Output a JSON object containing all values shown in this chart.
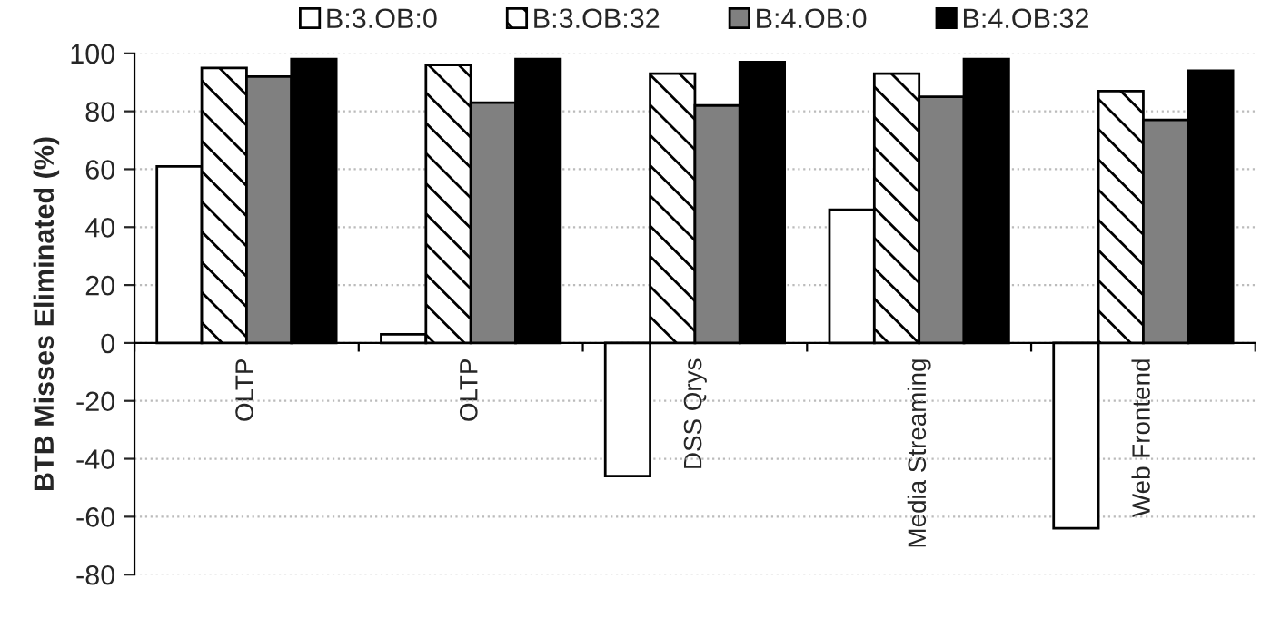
{
  "chart_data": {
    "type": "bar",
    "ylabel": "BTB Misses Eliminated (%)",
    "categories": [
      "OLTP",
      "OLTP",
      "DSS Qrys",
      "Media Streaming",
      "Web Frontend"
    ],
    "series": [
      {
        "name": "B:3.OB:0",
        "color": "#ffffff",
        "values": [
          61,
          3,
          -46,
          46,
          -64
        ]
      },
      {
        "name": "B:3.OB:32",
        "color": "#000000",
        "values": [
          95,
          96,
          93,
          93,
          87
        ]
      },
      {
        "name": "B:4.OB:0",
        "color": "#808080",
        "values": [
          92,
          83,
          82,
          85,
          77
        ]
      },
      {
        "name": "B:4.OB:32",
        "color": "#000000",
        "values": [
          98,
          98,
          97,
          98,
          94
        ]
      }
    ],
    "ylim": [
      -80,
      100
    ],
    "yticks": [
      -80,
      -60,
      -40,
      -20,
      0,
      20,
      40,
      60,
      80,
      100
    ],
    "grid": "y",
    "legend": "top"
  }
}
